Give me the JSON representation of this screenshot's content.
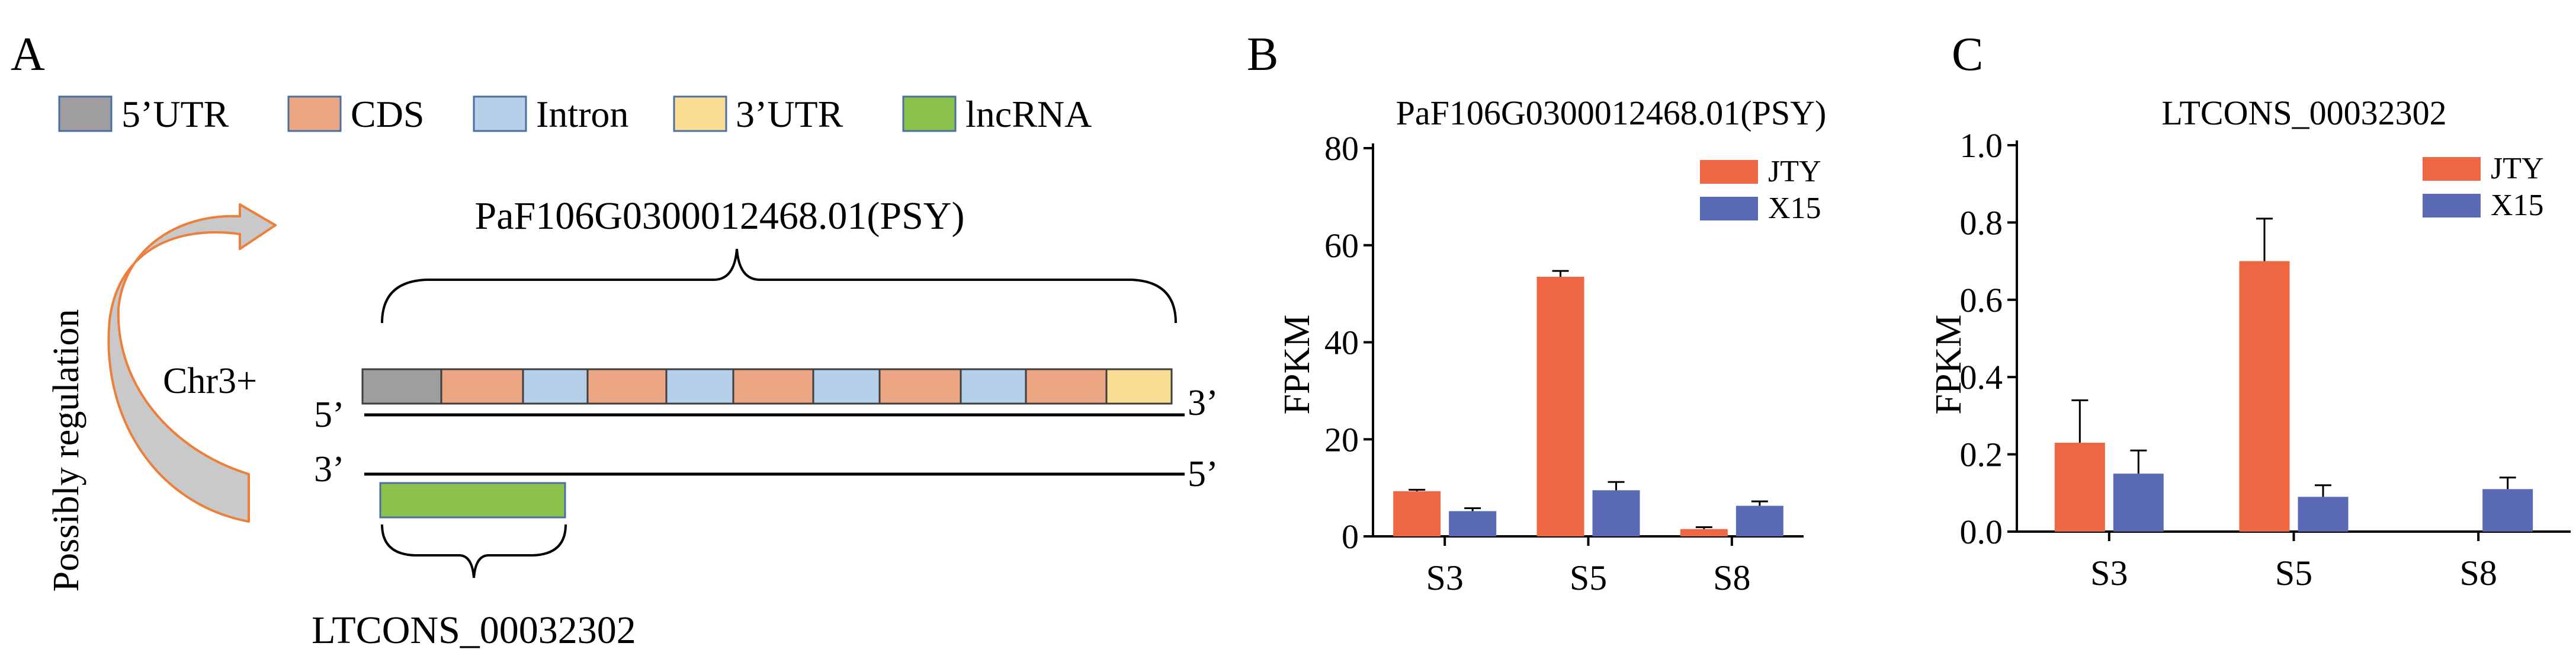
{
  "colors": {
    "utr5": "#a09da1",
    "cds": "#eda684",
    "intron": "#b6cfe8",
    "utr3": "#f8dd93",
    "lncrna": "#8bc34a",
    "jty": "#ee6642",
    "x15": "#5a6ab4",
    "arrow_stroke": "#ee7f3b",
    "arrow_fill": "#c9c9c9"
  },
  "panel_a": {
    "label": "A",
    "legend": [
      {
        "key": "utr5",
        "label": "5’UTR"
      },
      {
        "key": "cds",
        "label": "CDS"
      },
      {
        "key": "intron",
        "label": "Intron"
      },
      {
        "key": "utr3",
        "label": "3’UTR"
      },
      {
        "key": "lncrna",
        "label": "lncRNA"
      }
    ],
    "gene_name": "PaF106G0300012468.01(PSY)",
    "chromosome": "Chr3+",
    "regulation_text": "Possibly regulation",
    "top_strand_5": "5’",
    "top_strand_3": "3’",
    "bottom_strand_3": "3’",
    "bottom_strand_5": "5’",
    "lncrna_name": "LTCONS_00032302",
    "gene_segments": [
      "utr5",
      "cds",
      "intron",
      "cds",
      "intron",
      "cds",
      "intron",
      "cds",
      "intron",
      "cds",
      "utr3"
    ]
  },
  "chart_data": [
    {
      "panel": "B",
      "type": "bar",
      "title": "PaF106G0300012468.01(PSY)",
      "xlabel": "",
      "ylabel": "FPKM",
      "categories": [
        "S3",
        "S5",
        "S8"
      ],
      "ylim": [
        0,
        80
      ],
      "yticks": [
        "0",
        "20",
        "40",
        "60",
        "80"
      ],
      "legend_position": "top-right",
      "series": [
        {
          "name": "JTY",
          "color_key": "jty",
          "values": [
            9.3,
            53.5,
            1.5
          ],
          "errors": [
            0.3,
            1.2,
            0.4
          ]
        },
        {
          "name": "X15",
          "color_key": "x15",
          "values": [
            5.2,
            9.5,
            6.3
          ],
          "errors": [
            0.6,
            1.7,
            0.9
          ]
        }
      ]
    },
    {
      "panel": "C",
      "type": "bar",
      "title": "LTCONS_00032302",
      "xlabel": "",
      "ylabel": "FPKM",
      "categories": [
        "S3",
        "S5",
        "S8"
      ],
      "ylim": [
        0,
        1.0
      ],
      "yticks": [
        "0.0",
        "0.2",
        "0.4",
        "0.6",
        "0.8",
        "1.0"
      ],
      "legend_position": "top-right",
      "series": [
        {
          "name": "JTY",
          "color_key": "jty",
          "values": [
            0.23,
            0.7,
            0.0
          ],
          "errors": [
            0.11,
            0.11,
            0.0
          ]
        },
        {
          "name": "X15",
          "color_key": "x15",
          "values": [
            0.15,
            0.09,
            0.11
          ],
          "errors": [
            0.06,
            0.03,
            0.03
          ]
        }
      ]
    }
  ]
}
